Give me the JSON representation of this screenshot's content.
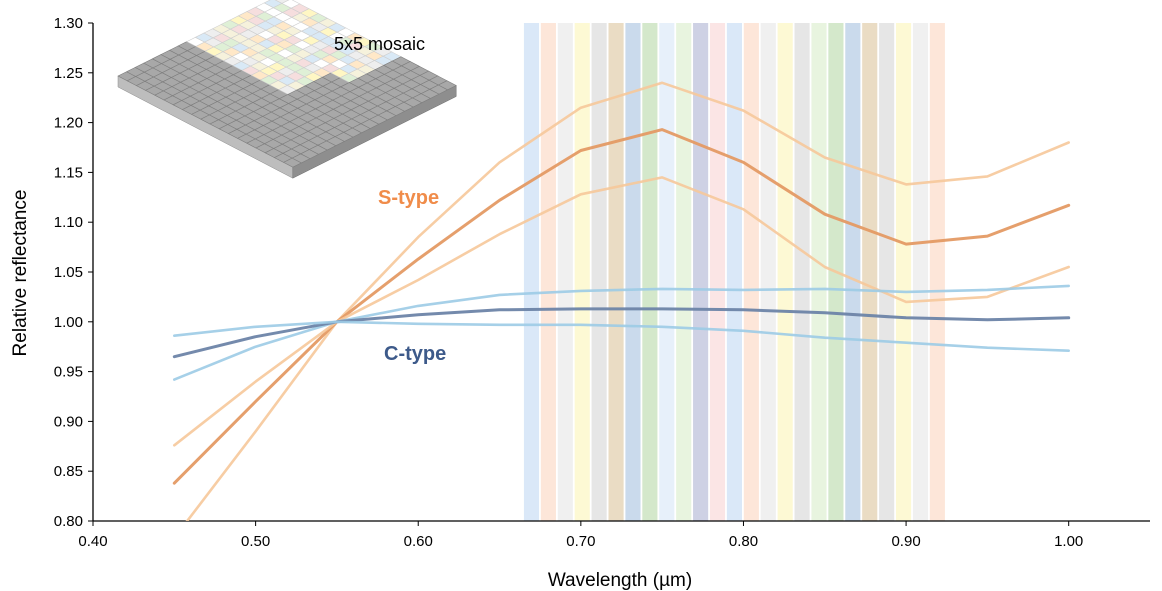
{
  "chart_data": {
    "type": "line",
    "xlabel": "Wavelength (µm)",
    "ylabel": "Relative reflectance",
    "xlim": [
      0.4,
      1.05
    ],
    "ylim": [
      0.8,
      1.3
    ],
    "x_ticks": [
      "0.40",
      "0.50",
      "0.60",
      "0.70",
      "0.80",
      "0.90",
      "1.00"
    ],
    "x_tick_values": [
      0.4,
      0.5,
      0.6,
      0.7,
      0.8,
      0.9,
      1.0
    ],
    "y_ticks": [
      "0.80",
      "0.85",
      "0.90",
      "0.95",
      "1.00",
      "1.05",
      "1.10",
      "1.15",
      "1.20",
      "1.25",
      "1.30"
    ],
    "y_tick_values": [
      0.8,
      0.85,
      0.9,
      0.95,
      1.0,
      1.05,
      1.1,
      1.15,
      1.2,
      1.25,
      1.3
    ],
    "grid": false,
    "x": [
      0.45,
      0.5,
      0.55,
      0.6,
      0.65,
      0.7,
      0.75,
      0.8,
      0.85,
      0.9,
      0.95,
      1.0
    ],
    "series": [
      {
        "group": "S-type",
        "role": "upper",
        "color": "#f6c89a",
        "values": [
          0.783,
          0.89,
          1.0,
          1.085,
          1.16,
          1.215,
          1.24,
          1.212,
          1.165,
          1.138,
          1.146,
          1.18
        ]
      },
      {
        "group": "S-type",
        "role": "mean",
        "color": "#e49a64",
        "values": [
          0.838,
          0.92,
          1.0,
          1.063,
          1.122,
          1.172,
          1.193,
          1.16,
          1.108,
          1.078,
          1.086,
          1.117
        ]
      },
      {
        "group": "S-type",
        "role": "lower",
        "color": "#f6c89a",
        "values": [
          0.876,
          0.94,
          1.0,
          1.042,
          1.088,
          1.128,
          1.145,
          1.113,
          1.055,
          1.02,
          1.025,
          1.055
        ]
      },
      {
        "group": "C-type",
        "role": "upper",
        "color": "#9ccbe6",
        "values": [
          0.942,
          0.975,
          1.0,
          1.016,
          1.027,
          1.031,
          1.033,
          1.032,
          1.033,
          1.03,
          1.032,
          1.036
        ]
      },
      {
        "group": "C-type",
        "role": "mean",
        "color": "#6d84a8",
        "values": [
          0.965,
          0.985,
          1.0,
          1.007,
          1.012,
          1.013,
          1.013,
          1.012,
          1.009,
          1.004,
          1.002,
          1.004
        ]
      },
      {
        "group": "C-type",
        "role": "lower",
        "color": "#9ccbe6",
        "values": [
          0.986,
          0.995,
          1.0,
          0.998,
          0.997,
          0.997,
          0.995,
          0.991,
          0.984,
          0.979,
          0.974,
          0.971
        ]
      }
    ],
    "labels": [
      {
        "text": "S-type",
        "color": "#f08c4a"
      },
      {
        "text": "C-type",
        "color": "#3d5a8a"
      }
    ],
    "filter_bands": {
      "start": 0.665,
      "width": 0.0093,
      "spacing": 0.0104,
      "colors": [
        "#c2d9f4",
        "#fbd5bf",
        "#e6e6e6",
        "#fbf5b8",
        "#d6d6d6",
        "#dcc59c",
        "#a6c2e0",
        "#b7d9a8",
        "#d7e6f7",
        "#d9edc9",
        "#aeb2d2",
        "#f8d4d4",
        "#c2d9f4",
        "#fbd5bf",
        "#e6e6e6",
        "#fbf5b8",
        "#d6d6d6",
        "#d9edc9",
        "#b7d9a8",
        "#a6c2e0",
        "#dcc59c",
        "#d6d6d6",
        "#fbf5b8",
        "#e6e6e6",
        "#fbd5bf"
      ]
    },
    "inset": {
      "label": "5x5 mosaic"
    }
  }
}
